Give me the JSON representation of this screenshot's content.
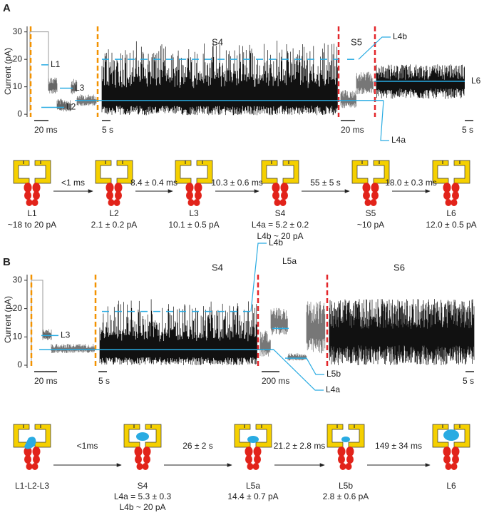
{
  "panels": [
    {
      "letter": "A",
      "y_label": "Current (pA)",
      "ylim": [
        -1,
        32
      ],
      "yticks": [
        0,
        10,
        20,
        30
      ],
      "segment_titles": [
        "S4",
        "S5"
      ],
      "scale_bars": [
        "20 ms",
        "5 s",
        "20 ms",
        "5 s"
      ],
      "levels": [
        {
          "label": "L1",
          "value": 18
        },
        {
          "label": "L2",
          "value": 2.5
        },
        {
          "label": "L3",
          "value": 9.5
        },
        {
          "label": "L4a",
          "value": 5
        },
        {
          "label": "L4b",
          "value": 20
        },
        {
          "label": "L6",
          "value": 12
        }
      ],
      "states": [
        {
          "name": "L1",
          "lines": [
            "~18 to 20 pA"
          ]
        },
        {
          "name": "L2",
          "lines": [
            "2.1 ± 0.2 pA"
          ]
        },
        {
          "name": "L3",
          "lines": [
            "10.1 ± 0.5 pA"
          ]
        },
        {
          "name": "S4",
          "lines": [
            "L4a = 5.2 ± 0.2",
            "L4b ~ 20 pA"
          ]
        },
        {
          "name": "S5",
          "lines": [
            "~10 pA"
          ]
        },
        {
          "name": "L6",
          "lines": [
            "12.0 ± 0.5 pA"
          ]
        }
      ],
      "transitions": [
        "<1 ms",
        "8.4 ± 0.4 ms",
        "10.3 ± 0.6 ms",
        "55 ± 5 s",
        "18.0 ± 0.3 ms"
      ]
    },
    {
      "letter": "B",
      "y_label": "Current (pA)",
      "ylim": [
        -1,
        32
      ],
      "yticks": [
        0,
        10,
        20,
        30
      ],
      "segment_titles": [
        "S4",
        "S6"
      ],
      "scale_bars": [
        "20 ms",
        "5 s",
        "200 ms",
        "5 s"
      ],
      "levels": [
        {
          "label": "L3",
          "value": 10.5
        },
        {
          "label": "L4a",
          "value": 5.5
        },
        {
          "label": "L4b",
          "value": 19
        },
        {
          "label": "L5a",
          "value": 13
        },
        {
          "label": "L5b",
          "value": 2.5
        }
      ],
      "states": [
        {
          "name": "L1-L2-L3",
          "lines": []
        },
        {
          "name": "S4",
          "lines": [
            "L4a = 5.3 ± 0.3",
            "L4b ~ 20 pA"
          ]
        },
        {
          "name": "L5a",
          "lines": [
            "14.4 ± 0.7 pA"
          ]
        },
        {
          "name": "L5b",
          "lines": [
            "2.8 ± 0.6 pA"
          ]
        },
        {
          "name": "L6",
          "lines": []
        }
      ],
      "transitions": [
        "<1ms",
        "26 ± 2 s",
        "21.2 ± 2.8 ms",
        "149 ± 34 ms"
      ]
    }
  ]
}
